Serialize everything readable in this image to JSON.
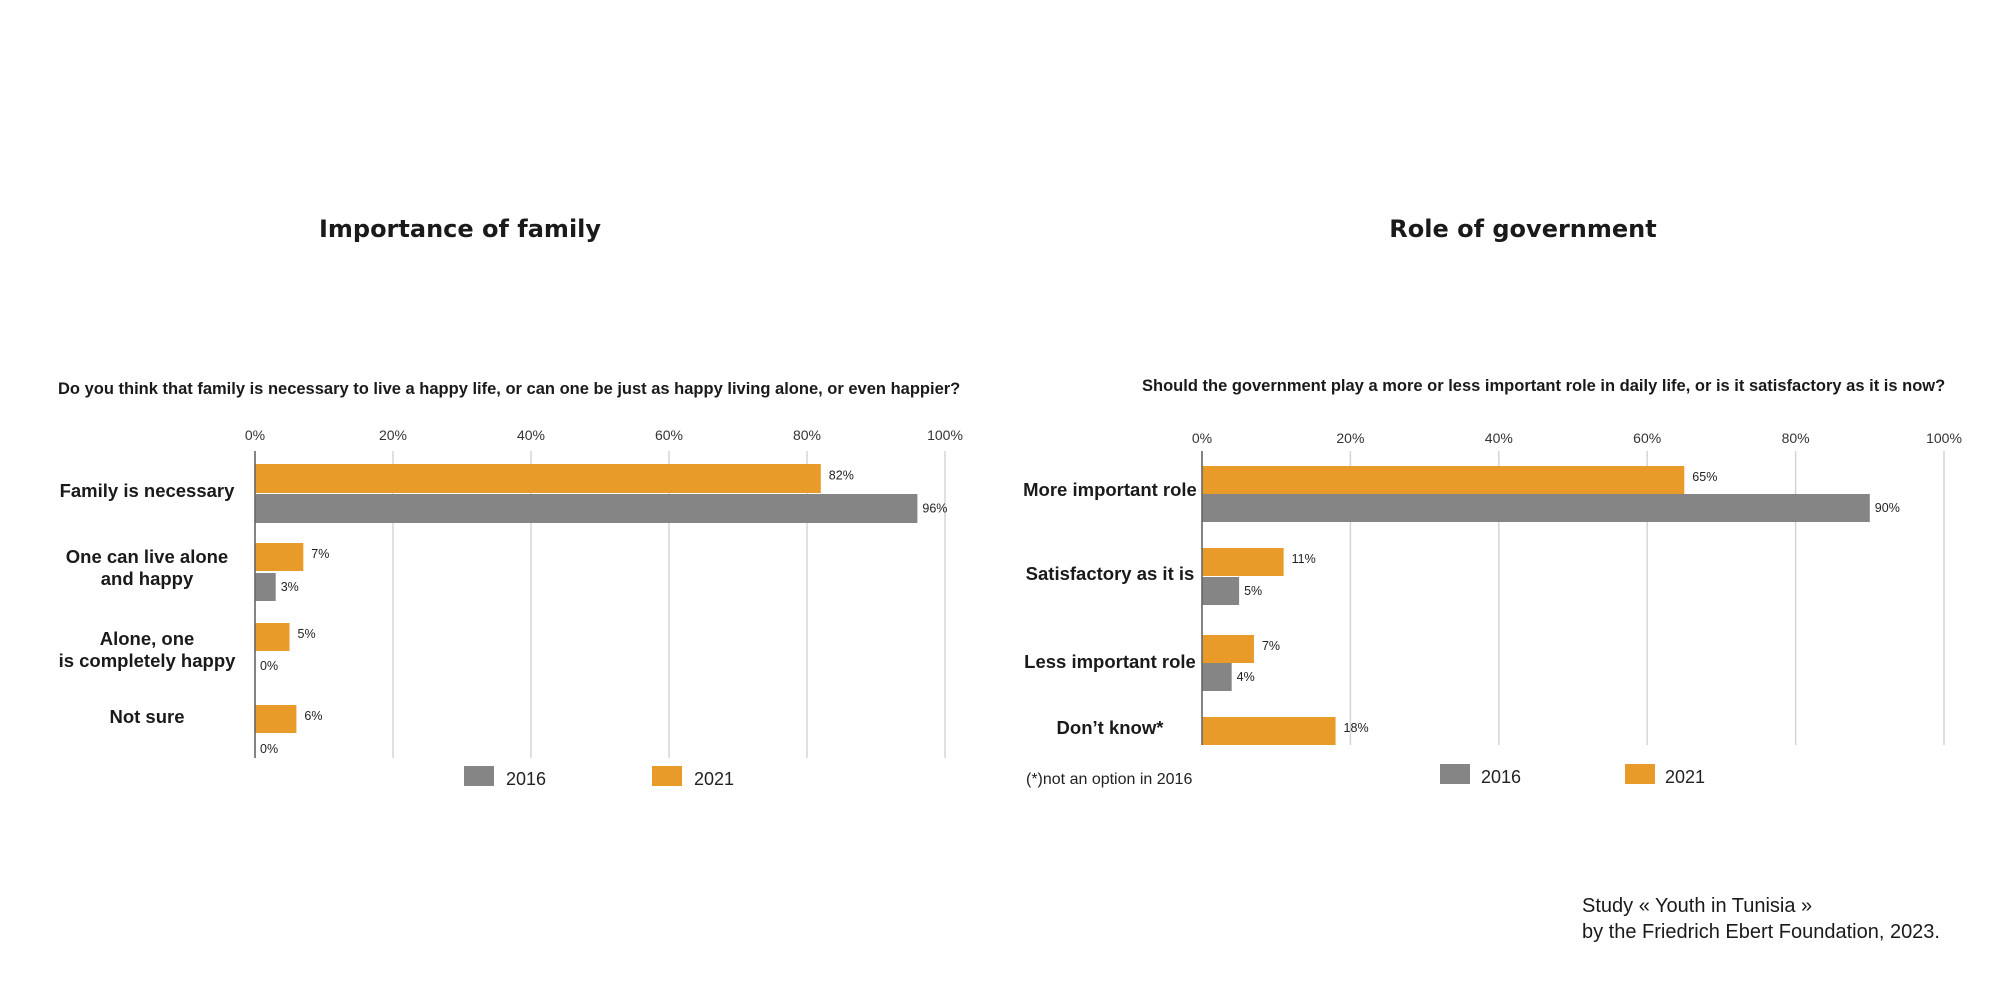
{
  "colors": {
    "2016": "#858585",
    "2021": "#E89B28",
    "grid": "#d3d3d3",
    "axis": "#666666"
  },
  "source": {
    "line1": "Study « Youth in Tunisia »",
    "line2": "by the Friedrich Ebert Foundation, 2023."
  },
  "chart_data": [
    {
      "type": "bar",
      "orientation": "horizontal",
      "title": "Importance of family",
      "subtitle": "Do you think that family is necessary to live a happy life, or can one be just as happy living alone, or even happier?",
      "xlim": [
        0,
        100
      ],
      "x_ticks": [
        "0%",
        "20%",
        "40%",
        "60%",
        "80%",
        "100%"
      ],
      "grid": true,
      "legend_position": "bottom",
      "categories": [
        [
          "Family is necessary"
        ],
        [
          "One can live alone",
          "and happy"
        ],
        [
          "Alone, one",
          "is completely happy"
        ],
        [
          "Not sure"
        ]
      ],
      "series": [
        {
          "name": "2021",
          "values": [
            82,
            7,
            5,
            6
          ],
          "labels": [
            "82%",
            "7%",
            "5%",
            "6%"
          ]
        },
        {
          "name": "2016",
          "values": [
            96,
            3,
            0,
            0
          ],
          "labels": [
            "96%",
            "3%",
            "0%",
            "0%"
          ]
        }
      ],
      "legend": [
        "2016",
        "2021"
      ]
    },
    {
      "type": "bar",
      "orientation": "horizontal",
      "title": "Role of government",
      "subtitle": "Should  the  government  play  a more or less important role in daily life, or is it satisfactory as it is now?",
      "xlim": [
        0,
        100
      ],
      "x_ticks": [
        "0%",
        "20%",
        "40%",
        "60%",
        "80%",
        "100%"
      ],
      "grid": true,
      "legend_position": "bottom",
      "categories": [
        [
          "More important role"
        ],
        [
          "Satisfactory as it is"
        ],
        [
          "Less important role"
        ],
        [
          "Don’t know*"
        ]
      ],
      "series": [
        {
          "name": "2021",
          "values": [
            65,
            11,
            7,
            18
          ],
          "labels": [
            "65%",
            "11%",
            "7%",
            "18%"
          ]
        },
        {
          "name": "2016",
          "values": [
            90,
            5,
            4,
            null
          ],
          "labels": [
            "90%",
            "5%",
            "4%",
            ""
          ]
        }
      ],
      "legend": [
        "2016",
        "2021"
      ],
      "note": "(*)not an option in 2016"
    }
  ]
}
